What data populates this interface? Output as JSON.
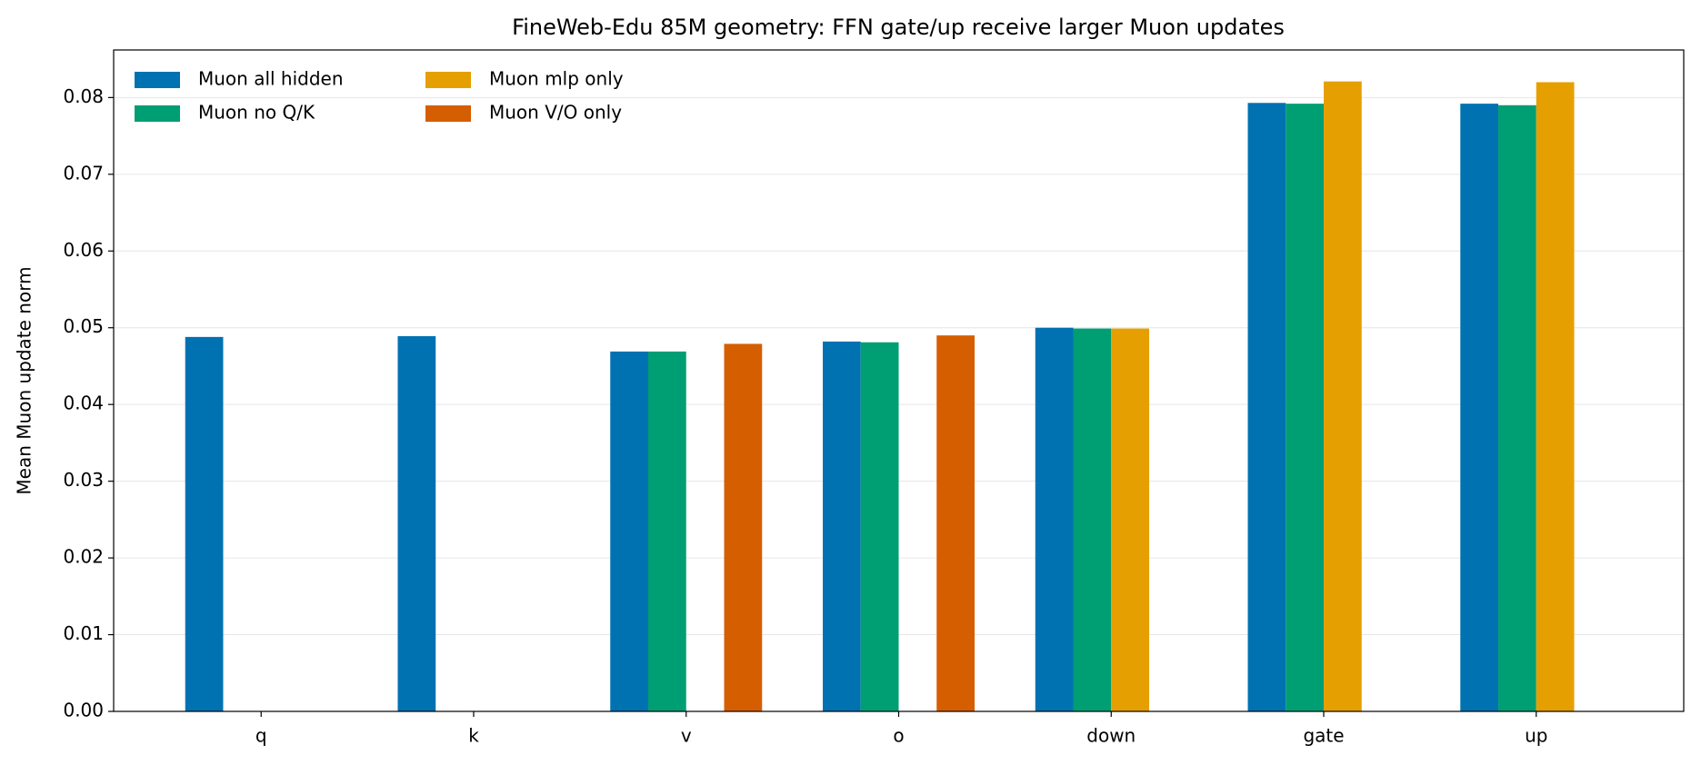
{
  "chart_data": {
    "type": "bar",
    "title": "FineWeb-Edu 85M geometry: FFN gate/up receive larger Muon updates",
    "ylabel": "Mean Muon update norm",
    "categories": [
      "q",
      "k",
      "v",
      "o",
      "down",
      "gate",
      "up"
    ],
    "series": [
      {
        "name": "Muon all hidden",
        "color": "#0072b2",
        "values": [
          0.0488,
          0.0489,
          0.0469,
          0.0482,
          0.05,
          0.0793,
          0.0792
        ]
      },
      {
        "name": "Muon no Q/K",
        "color": "#009e73",
        "values": [
          null,
          null,
          0.0469,
          0.0481,
          0.0499,
          0.0792,
          0.079
        ]
      },
      {
        "name": "Muon mlp only",
        "color": "#e69f00",
        "values": [
          null,
          null,
          null,
          null,
          0.0499,
          0.0821,
          0.082
        ]
      },
      {
        "name": "Muon V/O only",
        "color": "#d55e00",
        "values": [
          null,
          null,
          0.0479,
          0.049,
          null,
          null,
          null
        ]
      }
    ],
    "ylim": [
      0,
      0.0862
    ],
    "yticks": [
      {
        "value": 0,
        "label": "0.00"
      },
      {
        "value": 0.01,
        "label": "0.01"
      },
      {
        "value": 0.02,
        "label": "0.02"
      },
      {
        "value": 0.03,
        "label": "0.03"
      },
      {
        "value": 0.04,
        "label": "0.04"
      },
      {
        "value": 0.05,
        "label": "0.05"
      },
      {
        "value": 0.06,
        "label": "0.06"
      },
      {
        "value": 0.07,
        "label": "0.07"
      },
      {
        "value": 0.08,
        "label": "0.08"
      }
    ],
    "grid": true,
    "legend": "upper left"
  }
}
